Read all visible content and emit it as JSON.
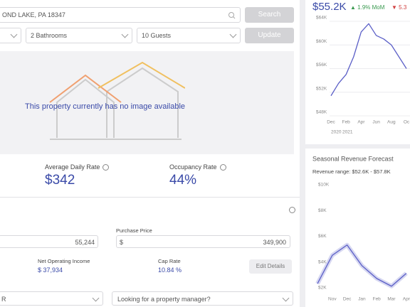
{
  "search": {
    "address": "OND LAKE, PA 18347",
    "button": "Search"
  },
  "filters": {
    "bathrooms": "2 Bathrooms",
    "guests": "10 Guests",
    "button": "Update"
  },
  "image_placeholder": "This property currently has no image available",
  "metrics": [
    {
      "label": "Average Daily Rate",
      "value": "$342"
    },
    {
      "label": "Occupancy Rate",
      "value": "44%"
    }
  ],
  "financials": {
    "first_input": "55,244",
    "purchase_price_label": "Purchase Price",
    "currency": "$",
    "purchase_price": "349,900",
    "noi_label": "Net Operating Income",
    "noi": "$ 37,934",
    "cap_rate_label": "Cap Rate",
    "cap_rate": "10.84 %",
    "edit_button": "Edit Details"
  },
  "bottom": {
    "left_select": "R",
    "manager_select": "Looking for a property manager?"
  },
  "revenue": {
    "value": "$55.2K",
    "mom": "▲ 1.9% MoM",
    "yoy": "▼ 5.3",
    "chart": {
      "type": "line",
      "color": "#5b5fc7",
      "grid": true,
      "categories": [
        "Dec",
        null,
        "Feb",
        null,
        "Apr",
        null,
        "Jun",
        null,
        "Aug",
        null,
        "Oc"
      ],
      "values": [
        51.4,
        53.5,
        55,
        58,
        62.2,
        63.6,
        61.6,
        61,
        60,
        58,
        56
      ],
      "ylim": [
        48,
        64
      ],
      "yticks": [
        {
          "value": 64,
          "label": "$64K"
        },
        {
          "value": 60,
          "label": "$60K"
        },
        {
          "value": 56,
          "label": "$56K"
        },
        {
          "value": 52,
          "label": "$52K"
        },
        {
          "value": 48,
          "label": "$48K"
        }
      ],
      "years": [
        "2020",
        "2021"
      ]
    }
  },
  "forecast": {
    "title": "Seasonal Revenue Forecast",
    "range": "Revenue range: $52.6K - $57.8K",
    "chart": {
      "type": "line",
      "color": "#5b5fc7",
      "grid": false,
      "categories": [
        null,
        "Nov",
        "Dec",
        "Jan",
        "Feb",
        "Mar",
        "Apr"
      ],
      "values": [
        2.6,
        4.8,
        5.6,
        4.0,
        3.0,
        2.4,
        3.4
      ],
      "ylim": [
        2,
        10
      ],
      "yticks": [
        {
          "value": 10,
          "label": "$10K"
        },
        {
          "value": 8,
          "label": "$8K"
        },
        {
          "value": 6,
          "label": "$6K"
        },
        {
          "value": 4,
          "label": "$4K"
        },
        {
          "value": 2,
          "label": "$2K"
        }
      ]
    }
  }
}
